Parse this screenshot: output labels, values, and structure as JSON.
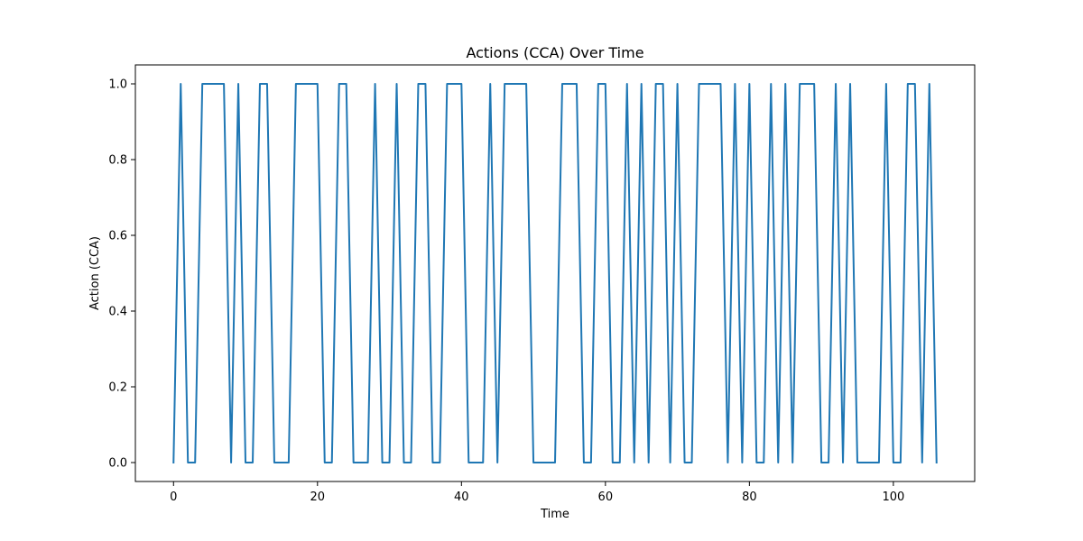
{
  "chart_data": {
    "type": "line",
    "title": "Actions (CCA) Over Time",
    "xlabel": "Time",
    "ylabel": "Action (CCA)",
    "xlim": [
      -5.3,
      111.3
    ],
    "ylim": [
      -0.05,
      1.05
    ],
    "x_ticks": [
      0,
      20,
      40,
      60,
      80,
      100
    ],
    "y_ticks": [
      0.0,
      0.2,
      0.4,
      0.6,
      0.8,
      1.0
    ],
    "y_tick_labels": [
      "0.0",
      "0.2",
      "0.4",
      "0.6",
      "0.8",
      "1.0"
    ],
    "grid": false,
    "legend": "none",
    "series": [
      {
        "color": "#1f77b4",
        "x": [
          0,
          1,
          2,
          3,
          4,
          5,
          6,
          7,
          8,
          9,
          10,
          11,
          12,
          13,
          14,
          15,
          16,
          17,
          18,
          19,
          20,
          21,
          22,
          23,
          24,
          25,
          26,
          27,
          28,
          29,
          30,
          31,
          32,
          33,
          34,
          35,
          36,
          37,
          38,
          39,
          40,
          41,
          42,
          43,
          44,
          45,
          46,
          47,
          48,
          49,
          50,
          51,
          52,
          53,
          54,
          55,
          56,
          57,
          58,
          59,
          60,
          61,
          62,
          63,
          64,
          65,
          66,
          67,
          68,
          69,
          70,
          71,
          72,
          73,
          74,
          75,
          76,
          77,
          78,
          79,
          80,
          81,
          82,
          83,
          84,
          85,
          86,
          87,
          88,
          89,
          90,
          91,
          92,
          93,
          94,
          95,
          96,
          97,
          98,
          99,
          100,
          101,
          102,
          103,
          104,
          105,
          106
        ],
        "y": [
          0,
          1,
          0,
          0,
          1,
          1,
          1,
          1,
          0,
          1,
          0,
          0,
          1,
          1,
          0,
          0,
          0,
          1,
          1,
          1,
          1,
          0,
          0,
          1,
          1,
          0,
          0,
          0,
          1,
          0,
          0,
          1,
          0,
          0,
          1,
          1,
          0,
          0,
          1,
          1,
          1,
          0,
          0,
          0,
          1,
          0,
          1,
          1,
          1,
          1,
          0,
          0,
          0,
          0,
          1,
          1,
          1,
          0,
          0,
          1,
          1,
          0,
          0,
          1,
          0,
          1,
          0,
          1,
          1,
          0,
          1,
          0,
          0,
          1,
          1,
          1,
          1,
          0,
          1,
          0,
          1,
          0,
          0,
          1,
          0,
          1,
          0,
          1,
          1,
          1,
          0,
          0,
          1,
          0,
          1,
          0,
          0,
          0,
          0,
          1,
          0,
          0,
          1,
          1,
          0,
          1,
          0
        ]
      }
    ]
  }
}
